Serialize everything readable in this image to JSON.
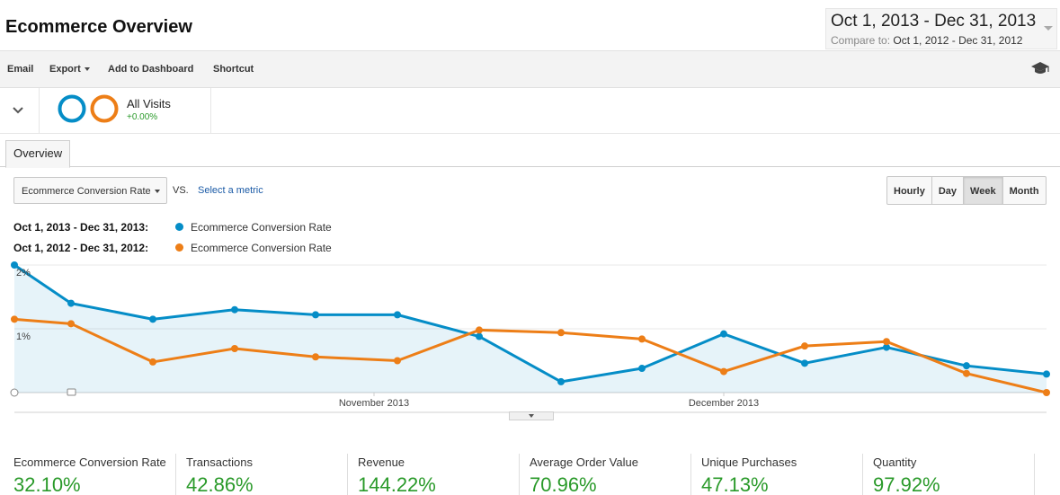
{
  "header": {
    "title": "Ecommerce Overview",
    "date_range": "Oct 1, 2013 - Dec 31, 2013",
    "compare_label": "Compare to:",
    "compare_range": "Oct 1, 2012 - Dec 31, 2012"
  },
  "toolbar": {
    "email": "Email",
    "export": "Export",
    "add_to_dashboard": "Add to Dashboard",
    "shortcut": "Shortcut",
    "help_icon": "graduation-cap-icon"
  },
  "segment": {
    "name": "All Visits",
    "change": "+0.00%",
    "colors": [
      "#058dc7",
      "#ed7e17"
    ]
  },
  "tabs": [
    {
      "label": "Overview"
    }
  ],
  "controls": {
    "metric": "Ecommerce Conversion Rate",
    "vs": "VS.",
    "select_metric": "Select a metric",
    "granularity": [
      "Hourly",
      "Day",
      "Week",
      "Month"
    ],
    "active_granularity": "Week"
  },
  "legend": [
    {
      "period": "Oct 1, 2013 - Dec 31, 2013:",
      "metric": "Ecommerce Conversion Rate",
      "color": "#058dc7"
    },
    {
      "period": "Oct 1, 2012 - Dec 31, 2012:",
      "metric": "Ecommerce Conversion Rate",
      "color": "#ed7e17"
    }
  ],
  "chart_data": {
    "type": "line",
    "y_tick_labels": [
      "2%",
      "1%"
    ],
    "x_tick_labels": [
      "November 2013",
      "December 2013"
    ],
    "ylim": [
      0,
      2
    ],
    "grid": true,
    "series": [
      {
        "name": "Oct 1, 2013 - Dec 31, 2013",
        "color": "#058dc7",
        "area": true,
        "values": [
          2.0,
          1.4,
          1.15,
          1.3,
          1.22,
          1.22,
          0.88,
          0.17,
          0.38,
          0.92,
          0.46,
          0.71,
          0.42,
          0.29
        ]
      },
      {
        "name": "Oct 1, 2012 - Dec 31, 2012",
        "color": "#ed7e17",
        "area": false,
        "values": [
          1.15,
          1.08,
          0.48,
          0.69,
          0.56,
          0.5,
          0.98,
          0.94,
          0.84,
          0.33,
          0.73,
          0.8,
          0.3,
          0.0
        ]
      }
    ]
  },
  "scorecards": [
    {
      "label": "Ecommerce Conversion Rate",
      "value": "32.10%"
    },
    {
      "label": "Transactions",
      "value": "42.86%"
    },
    {
      "label": "Revenue",
      "value": "144.22%"
    },
    {
      "label": "Average Order Value",
      "value": "70.96%"
    },
    {
      "label": "Unique Purchases",
      "value": "47.13%"
    },
    {
      "label": "Quantity",
      "value": "97.92%"
    }
  ]
}
